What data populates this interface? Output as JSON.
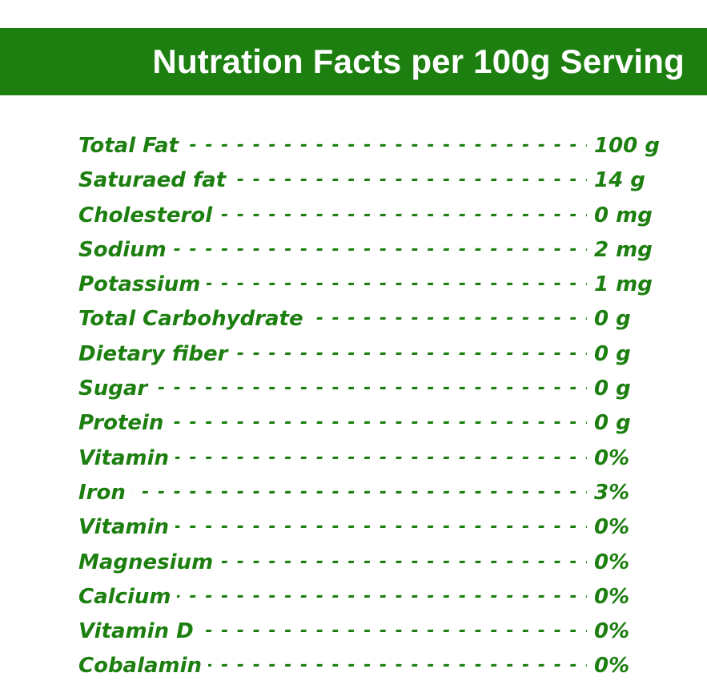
{
  "header": {
    "title": "Nutration Facts per 100g Serving",
    "background_color": "#1d7f10",
    "text_color": "#ffffff"
  },
  "accent_color": "#1d7f10",
  "nutrients": [
    {
      "name": "Total Fat",
      "amount": "100 g"
    },
    {
      "name": "Saturaed fat",
      "amount": "14 g"
    },
    {
      "name": "Cholesterol",
      "amount": "0 mg"
    },
    {
      "name": "Sodium",
      "amount": "2 mg"
    },
    {
      "name": "Potassium",
      "amount": "1 mg"
    },
    {
      "name": "Total Carbohydrate",
      "amount": "0 g"
    },
    {
      "name": "Dietary fiber",
      "amount": "0 g"
    },
    {
      "name": "Sugar",
      "amount": "0 g"
    },
    {
      "name": "Protein",
      "amount": "0 g"
    },
    {
      "name": "Vitamin",
      "amount": "0%"
    },
    {
      "name": "Iron",
      "amount": "3%"
    },
    {
      "name": "Vitamin",
      "amount": "0%"
    },
    {
      "name": "Magnesium",
      "amount": "0%"
    },
    {
      "name": "Calcium",
      "amount": "0%"
    },
    {
      "name": "Vitamin D",
      "amount": "0%"
    },
    {
      "name": "Cobalamin",
      "amount": "0%"
    }
  ]
}
